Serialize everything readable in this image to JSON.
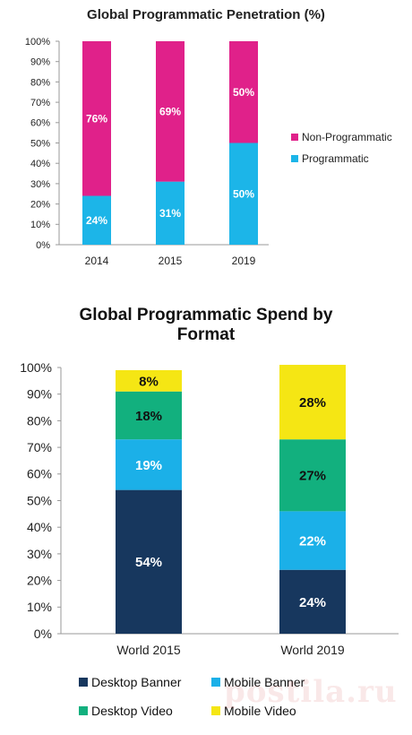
{
  "chart_data": [
    {
      "type": "bar",
      "stacked": true,
      "title": "Global Programmatic Penetration (%)",
      "categories": [
        "2014",
        "2015",
        "2019"
      ],
      "series": [
        {
          "name": "Programmatic",
          "values": [
            24,
            31,
            50
          ],
          "labels": [
            "24%",
            "31%",
            "50%"
          ],
          "color": "#1cb5e8"
        },
        {
          "name": "Non-Programmatic",
          "values": [
            76,
            69,
            50
          ],
          "labels": [
            "76%",
            "69%",
            "50%"
          ],
          "color": "#e0218a"
        }
      ],
      "ylim": [
        0,
        100
      ],
      "yticks": [
        "0%",
        "10%",
        "20%",
        "30%",
        "40%",
        "50%",
        "60%",
        "70%",
        "80%",
        "90%",
        "100%"
      ],
      "legend_position": "right",
      "grid": false
    },
    {
      "type": "bar",
      "stacked": true,
      "title": "Global Programmatic Spend by Format",
      "title_lines": [
        "Global Programmatic Spend by",
        "Format"
      ],
      "categories": [
        "World 2015",
        "World 2019"
      ],
      "series": [
        {
          "name": "Desktop Banner",
          "values": [
            54,
            24
          ],
          "labels": [
            "54%",
            "24%"
          ],
          "color": "#17375e"
        },
        {
          "name": "Mobile Banner",
          "values": [
            19,
            22
          ],
          "labels": [
            "19%",
            "22%"
          ],
          "color": "#1bb0e8"
        },
        {
          "name": "Desktop Video",
          "values": [
            18,
            27
          ],
          "labels": [
            "18%",
            "27%"
          ],
          "color": "#12b07e"
        },
        {
          "name": "Mobile Video",
          "values": [
            8,
            28
          ],
          "labels": [
            "8%",
            "28%"
          ],
          "color": "#f5e614"
        }
      ],
      "ylim": [
        0,
        100
      ],
      "yticks": [
        "0%",
        "10%",
        "20%",
        "30%",
        "40%",
        "50%",
        "60%",
        "70%",
        "80%",
        "90%",
        "100%"
      ],
      "legend_position": "bottom",
      "grid": false
    }
  ],
  "watermark": "postila.ru"
}
